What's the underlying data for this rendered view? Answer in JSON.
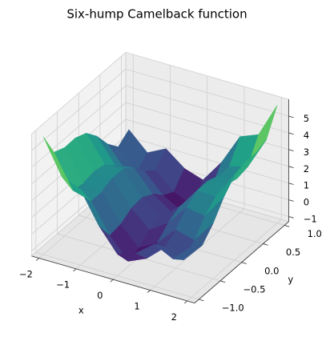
{
  "chart_data": {
    "type": "surface",
    "title": "Six-hump Camelback function",
    "x_label": "x",
    "y_label": "y",
    "x": [
      -2,
      -1.5,
      -1,
      -0.5,
      0,
      0.5,
      1,
      1.5,
      2
    ],
    "y": [
      -1,
      -0.75,
      -0.5,
      -0.25,
      0,
      0.25,
      0.5,
      0.75,
      1
    ],
    "z": [
      [
        5.73,
        3.67,
        3.23,
        1.37,
        0,
        0.37,
        1.23,
        0.67,
        1.73
      ],
      [
        4.25,
        2.31,
        2.0,
        0.27,
        -0.98,
        -0.49,
        0.5,
        0.06,
        1.25
      ],
      [
        3.98,
        2.17,
        1.98,
        0.37,
        -0.75,
        -0.13,
        0.98,
        0.67,
        1.98
      ],
      [
        4.0,
        2.31,
        2.25,
        0.76,
        -0.23,
        0.51,
        1.75,
        1.56,
        3.0
      ],
      [
        3.73,
        2.17,
        2.23,
        0.87,
        0,
        0.87,
        2.23,
        2.17,
        3.73
      ],
      [
        3.0,
        1.56,
        1.75,
        0.51,
        -0.23,
        0.76,
        2.25,
        2.31,
        4.0
      ],
      [
        1.98,
        0.67,
        0.98,
        -0.13,
        -0.75,
        0.37,
        1.98,
        2.17,
        3.98
      ],
      [
        1.25,
        0.06,
        0.5,
        -0.49,
        -0.98,
        0.27,
        2.0,
        2.31,
        4.25
      ],
      [
        1.73,
        0.67,
        1.23,
        0.37,
        0,
        1.37,
        3.23,
        3.67,
        5.73
      ]
    ],
    "colormap": "viridis",
    "xlim": [
      -2.2,
      2.2
    ],
    "ylim": [
      -1.1,
      1.1
    ],
    "zlim": [
      -1.3,
      6.0
    ],
    "xticks": [
      {
        "value": -2,
        "label": "−2"
      },
      {
        "value": -1,
        "label": "−1"
      },
      0,
      1,
      2
    ],
    "yticks": [
      {
        "value": -1,
        "label": "−1.0"
      },
      {
        "value": -0.5,
        "label": "−0.5"
      },
      {
        "value": 0,
        "label": "0.0"
      },
      {
        "value": 0.5,
        "label": "0.5"
      },
      {
        "value": 1,
        "label": "1.0"
      }
    ],
    "zticks": [
      {
        "value": -1,
        "label": "−1"
      },
      0,
      1,
      2,
      3,
      4,
      5
    ],
    "grid": true
  }
}
